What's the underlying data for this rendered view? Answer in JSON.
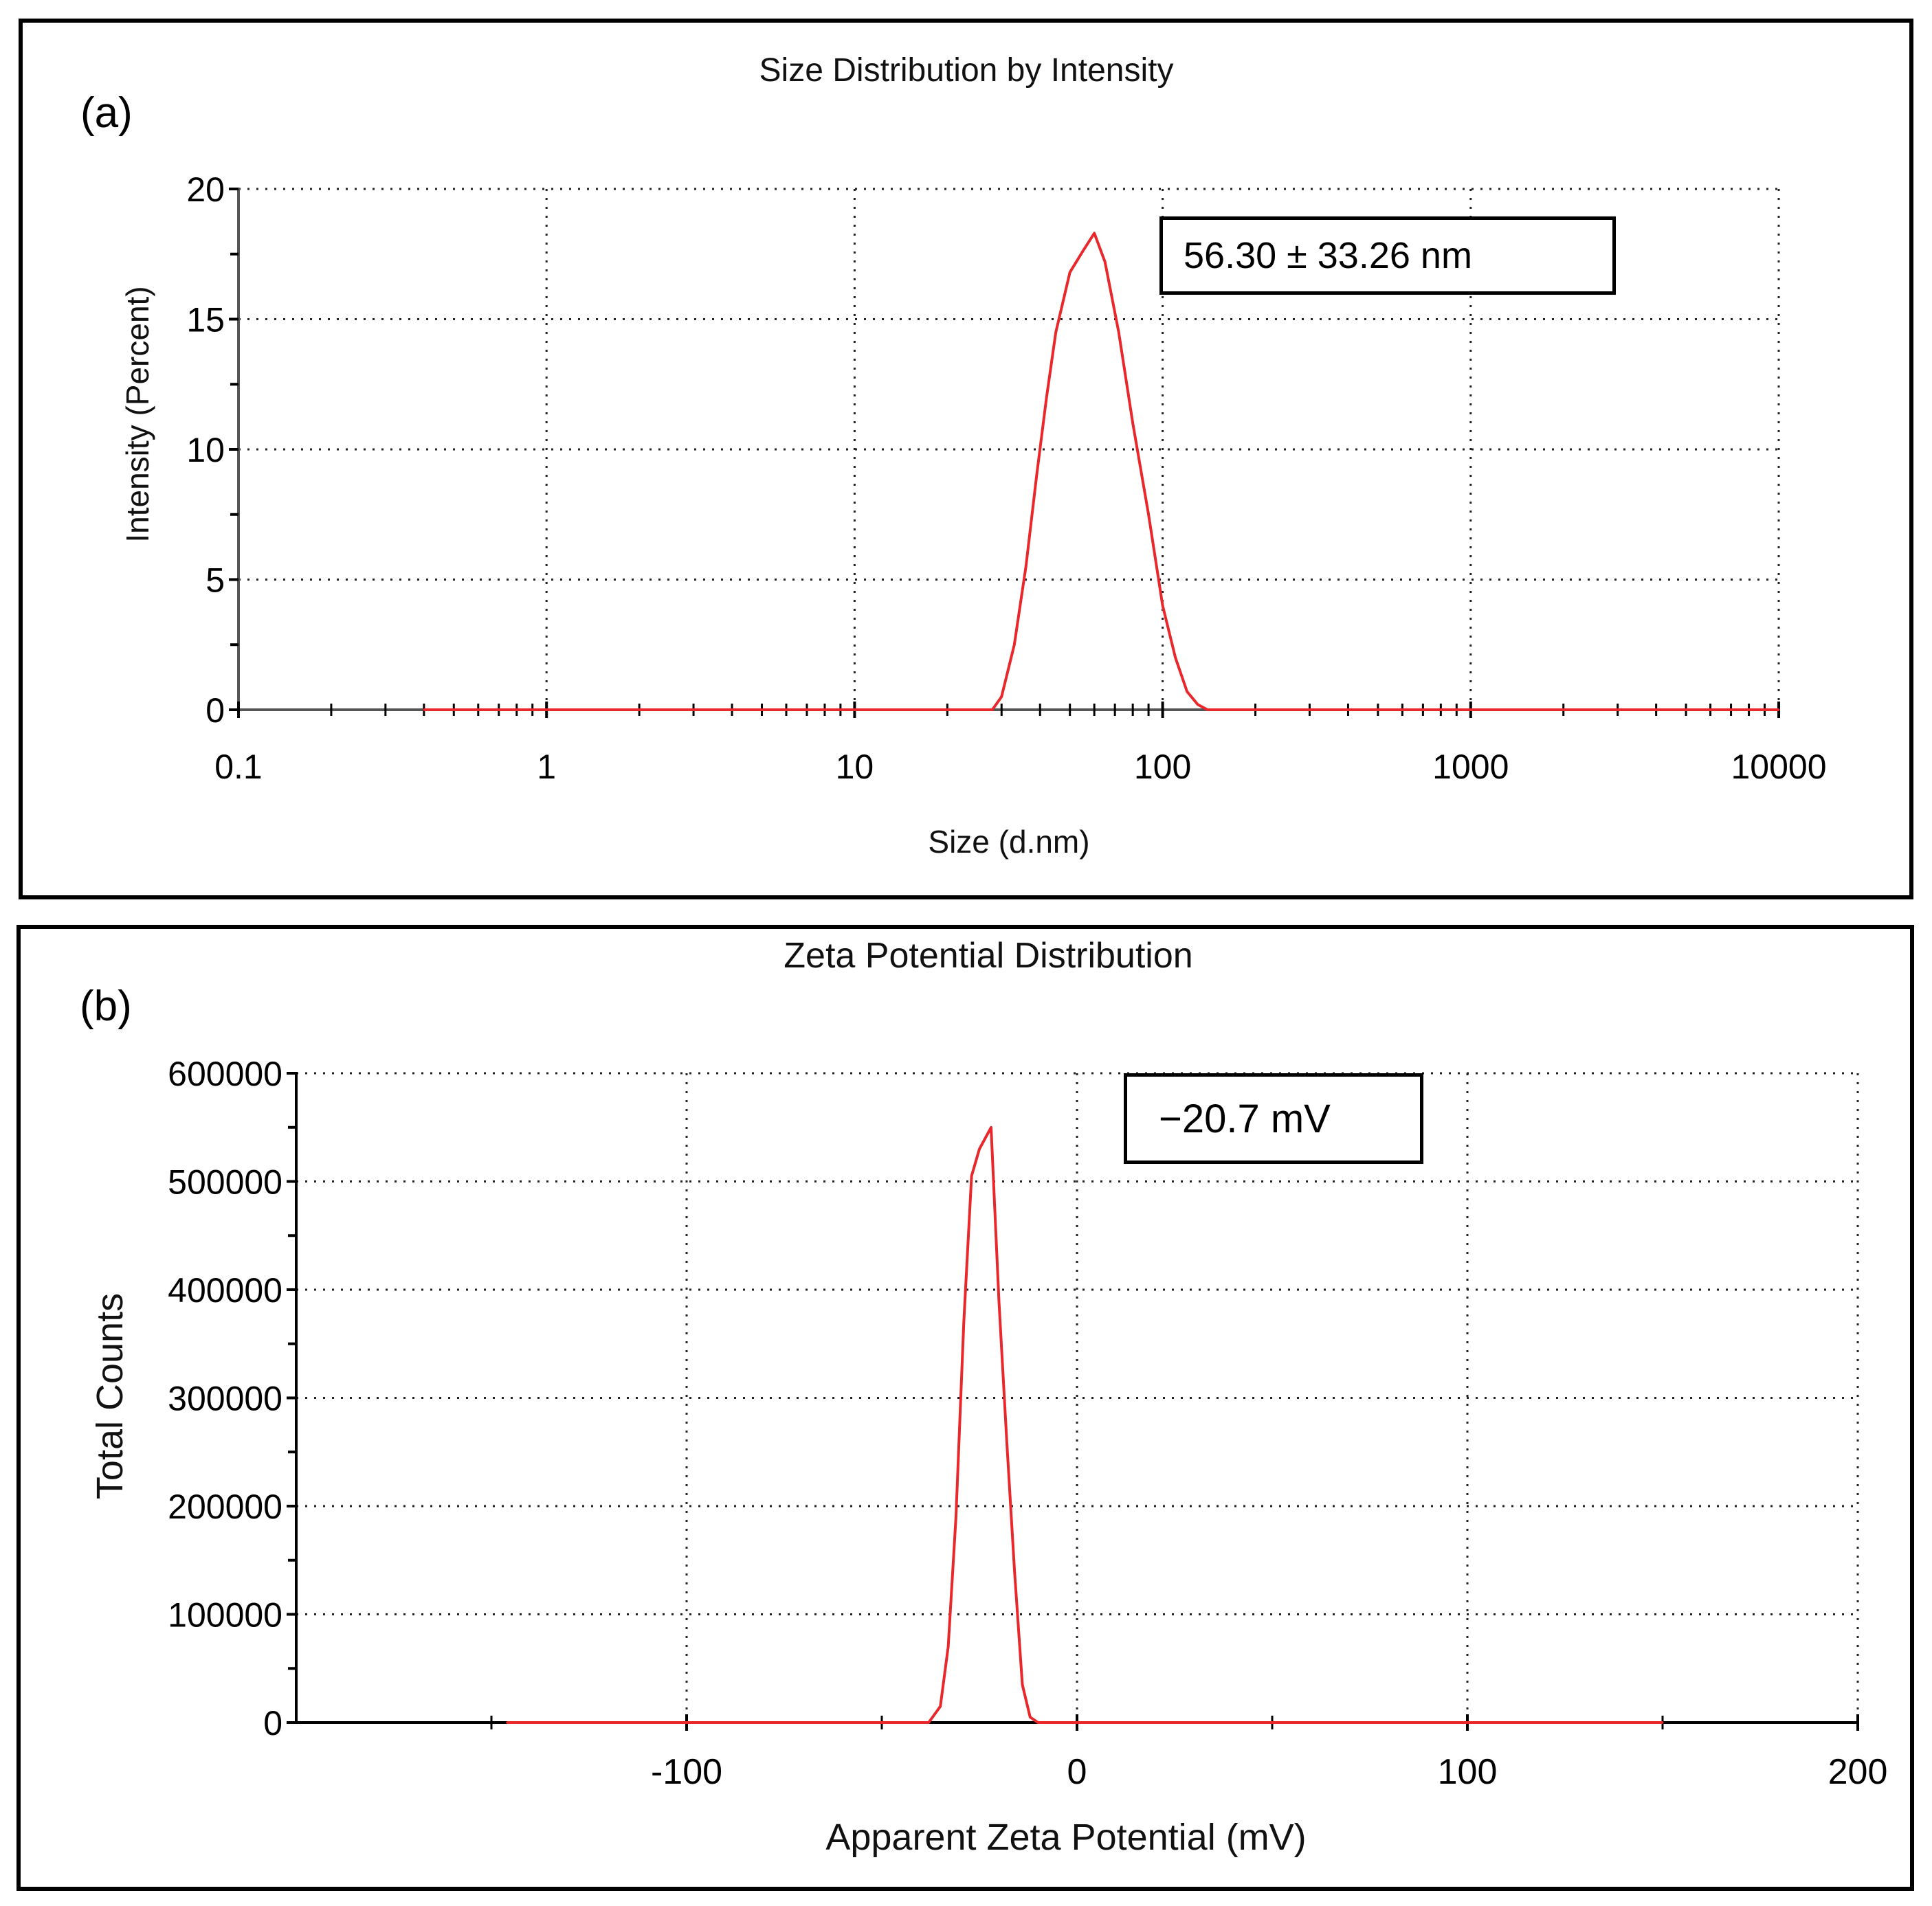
{
  "chart_data": [
    {
      "panel_label": "(a)",
      "type": "line",
      "title": "Size Distribution by Intensity",
      "xlabel": "Size (d.nm)",
      "ylabel": "Intensity (Percent)",
      "xscale": "log",
      "xlim": [
        0.1,
        10000
      ],
      "ylim": [
        0,
        20
      ],
      "xticks": [
        "0.1",
        "1",
        "10",
        "100",
        "1000",
        "10000"
      ],
      "xtick_values": [
        0.1,
        1,
        10,
        100,
        1000,
        10000
      ],
      "yticks": [
        "0",
        "5",
        "10",
        "15",
        "20"
      ],
      "ytick_values": [
        0,
        5,
        10,
        15,
        20
      ],
      "grid": true,
      "annotation": "56.30 ± 33.26 nm",
      "series": [
        {
          "name": "Intensity",
          "color": "#e8282b",
          "x": [
            0.4,
            28,
            30,
            33,
            36,
            39,
            42,
            45,
            50,
            55,
            60,
            65,
            72,
            80,
            90,
            100,
            110,
            120,
            130,
            140,
            10000
          ],
          "y": [
            0,
            0,
            0.5,
            2.5,
            5.5,
            9,
            12,
            14.5,
            16.8,
            17.6,
            18.3,
            17.2,
            14.5,
            11,
            7.5,
            4,
            2,
            0.7,
            0.2,
            0,
            0
          ]
        }
      ]
    },
    {
      "panel_label": "(b)",
      "type": "line",
      "title": "Zeta Potential Distribution",
      "xlabel": "Apparent Zeta Potential (mV)",
      "ylabel": "Total Counts",
      "xlim": [
        -200,
        200
      ],
      "ylim": [
        0,
        600000
      ],
      "xticks": [
        "-100",
        "0",
        "100",
        "200"
      ],
      "xtick_values": [
        -100,
        0,
        100,
        200
      ],
      "yticks": [
        "0",
        "100000",
        "200000",
        "300000",
        "400000",
        "500000",
        "600000"
      ],
      "ytick_values": [
        0,
        100000,
        200000,
        300000,
        400000,
        500000,
        600000
      ],
      "grid": true,
      "annotation": "−20.7 mV",
      "series": [
        {
          "name": "Total Counts",
          "color": "#e8282b",
          "x": [
            -146,
            -38,
            -35,
            -33,
            -31,
            -29,
            -27,
            -25,
            -22,
            -20,
            -18,
            -16,
            -14,
            -12,
            -10,
            150
          ],
          "y": [
            0,
            0,
            15000,
            70000,
            190000,
            370000,
            505000,
            530000,
            550000,
            390000,
            260000,
            140000,
            35000,
            5000,
            0,
            0
          ]
        }
      ]
    }
  ]
}
